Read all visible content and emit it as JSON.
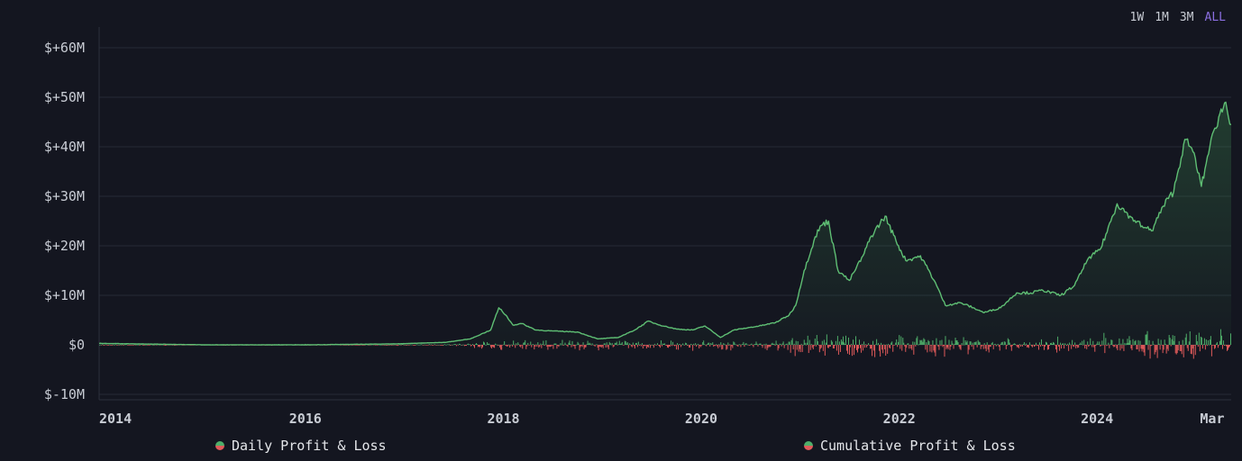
{
  "range_tabs": [
    {
      "label": "1W",
      "active": false
    },
    {
      "label": "1M",
      "active": false
    },
    {
      "label": "3M",
      "active": false
    },
    {
      "label": "ALL",
      "active": true
    }
  ],
  "legend": {
    "daily": "Daily Profit & Loss",
    "cumulative": "Cumulative Profit & Loss"
  },
  "colors": {
    "background": "#141620",
    "grid": "#262a36",
    "cumulative_line": "#5fbf74",
    "positive": "#4fae6a",
    "negative": "#e05a5a",
    "active_tab": "#8b6fe0"
  },
  "chart_data": {
    "type": "line",
    "title": "",
    "xlabel": "",
    "ylabel": "",
    "ylim": [
      -10,
      60
    ],
    "xlim": [
      "2013-12-01",
      "2025-05-10"
    ],
    "grid": true,
    "legend_placement": "bottom",
    "y_unit": "$M",
    "y_ticks": [
      {
        "value": 60,
        "label": "$+60M"
      },
      {
        "value": 50,
        "label": "$+50M"
      },
      {
        "value": 40,
        "label": "$+40M"
      },
      {
        "value": 30,
        "label": "$+30M"
      },
      {
        "value": 20,
        "label": "$+20M"
      },
      {
        "value": 10,
        "label": "$+10M"
      },
      {
        "value": 0,
        "label": "$0"
      },
      {
        "value": -10,
        "label": "$-10M"
      }
    ],
    "x_ticks": [
      {
        "value": "2014-01-01",
        "label": "2014"
      },
      {
        "value": "2016-01-01",
        "label": "2016"
      },
      {
        "value": "2018-01-01",
        "label": "2018"
      },
      {
        "value": "2020-01-01",
        "label": "2020"
      },
      {
        "value": "2022-01-01",
        "label": "2022"
      },
      {
        "value": "2024-01-01",
        "label": "2024"
      },
      {
        "value": "2025-03-01",
        "label": "Mar"
      }
    ],
    "series": [
      {
        "name": "Cumulative Profit & Loss",
        "kind": "line-area",
        "points": [
          [
            "2013-12-01",
            0.3
          ],
          [
            "2015-01-01",
            0.0
          ],
          [
            "2016-01-01",
            0.0
          ],
          [
            "2016-12-01",
            0.2
          ],
          [
            "2017-06-01",
            0.5
          ],
          [
            "2017-09-01",
            1.2
          ],
          [
            "2017-11-15",
            3.0
          ],
          [
            "2017-12-15",
            7.5
          ],
          [
            "2018-01-10",
            6.0
          ],
          [
            "2018-02-05",
            4.0
          ],
          [
            "2018-03-10",
            4.3
          ],
          [
            "2018-05-01",
            3.0
          ],
          [
            "2018-07-01",
            2.8
          ],
          [
            "2018-10-01",
            2.6
          ],
          [
            "2018-12-15",
            1.2
          ],
          [
            "2019-03-01",
            1.5
          ],
          [
            "2019-05-01",
            3.0
          ],
          [
            "2019-06-20",
            4.8
          ],
          [
            "2019-08-01",
            4.0
          ],
          [
            "2019-10-01",
            3.2
          ],
          [
            "2019-12-01",
            3.0
          ],
          [
            "2020-01-15",
            3.8
          ],
          [
            "2020-03-12",
            1.5
          ],
          [
            "2020-05-01",
            3.0
          ],
          [
            "2020-08-01",
            3.8
          ],
          [
            "2020-10-01",
            4.5
          ],
          [
            "2020-11-20",
            6.0
          ],
          [
            "2020-12-15",
            8.0
          ],
          [
            "2021-01-15",
            15.0
          ],
          [
            "2021-02-20",
            21.0
          ],
          [
            "2021-03-15",
            24.0
          ],
          [
            "2021-04-15",
            25.0
          ],
          [
            "2021-05-20",
            15.0
          ],
          [
            "2021-07-01",
            13.0
          ],
          [
            "2021-08-20",
            18.0
          ],
          [
            "2021-09-20",
            22.0
          ],
          [
            "2021-11-10",
            26.0
          ],
          [
            "2021-12-20",
            21.0
          ],
          [
            "2022-01-25",
            17.0
          ],
          [
            "2022-03-20",
            18.0
          ],
          [
            "2022-05-10",
            13.0
          ],
          [
            "2022-06-20",
            8.0
          ],
          [
            "2022-08-15",
            8.5
          ],
          [
            "2022-10-01",
            7.5
          ],
          [
            "2022-11-10",
            6.5
          ],
          [
            "2023-01-10",
            7.5
          ],
          [
            "2023-03-10",
            10.5
          ],
          [
            "2023-05-01",
            10.5
          ],
          [
            "2023-06-15",
            11.0
          ],
          [
            "2023-08-20",
            10.0
          ],
          [
            "2023-10-10",
            12.0
          ],
          [
            "2023-11-25",
            17.0
          ],
          [
            "2024-01-15",
            19.5
          ],
          [
            "2024-03-15",
            28.5
          ],
          [
            "2024-05-01",
            26.0
          ],
          [
            "2024-06-15",
            24.0
          ],
          [
            "2024-07-20",
            23.0
          ],
          [
            "2024-09-01",
            28.0
          ],
          [
            "2024-10-10",
            31.0
          ],
          [
            "2024-11-20",
            41.5
          ],
          [
            "2024-12-20",
            39.0
          ],
          [
            "2025-01-20",
            32.0
          ],
          [
            "2025-02-20",
            40.0
          ],
          [
            "2025-03-25",
            46.0
          ],
          [
            "2025-04-20",
            49.0
          ],
          [
            "2025-05-10",
            44.5
          ]
        ]
      },
      {
        "name": "Daily Profit & Loss",
        "kind": "bars",
        "amplitude_profile": [
          [
            "2013-12-01",
            0.15,
            0.15
          ],
          [
            "2017-06-01",
            0.2,
            0.2
          ],
          [
            "2017-12-01",
            1.0,
            1.2
          ],
          [
            "2019-06-01",
            0.8,
            1.0
          ],
          [
            "2020-10-01",
            0.8,
            1.0
          ],
          [
            "2021-01-01",
            2.2,
            2.6
          ],
          [
            "2022-06-01",
            1.8,
            2.2
          ],
          [
            "2023-06-01",
            1.2,
            1.3
          ],
          [
            "2024-03-01",
            2.4,
            2.6
          ],
          [
            "2025-05-10",
            3.0,
            3.0
          ]
        ]
      }
    ]
  }
}
